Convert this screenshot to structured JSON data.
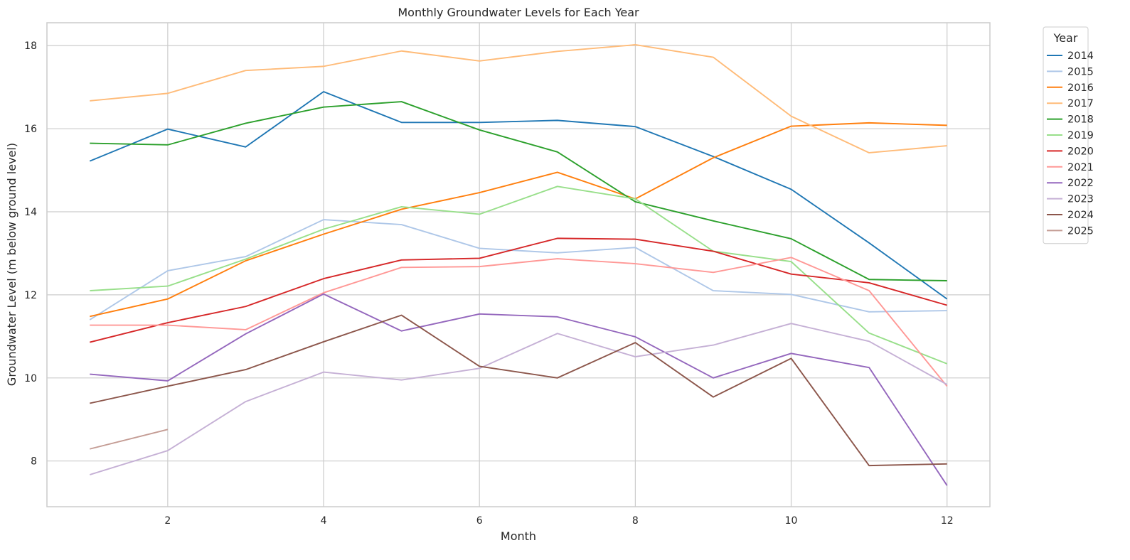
{
  "chart_data": {
    "type": "line",
    "title": "Monthly Groundwater Levels for Each Year",
    "xlabel": "Month",
    "ylabel": "Groundwater Level (m below ground level)",
    "xlim": [
      0.45,
      12.55
    ],
    "ylim": [
      6.9,
      18.55
    ],
    "xticks": [
      2,
      4,
      6,
      8,
      10,
      12
    ],
    "yticks": [
      8,
      10,
      12,
      14,
      16,
      18
    ],
    "grid": true,
    "legend": {
      "title": "Year",
      "placement": "outside-top-right"
    },
    "x": [
      1,
      2,
      3,
      4,
      5,
      6,
      7,
      8,
      9,
      10,
      11,
      12
    ],
    "series": [
      {
        "name": "2014",
        "color": "#1f77b4",
        "values": [
          15.22,
          15.99,
          15.56,
          16.89,
          16.15,
          16.15,
          16.2,
          16.05,
          15.33,
          14.54,
          13.25,
          11.9
        ]
      },
      {
        "name": "2015",
        "color": "#aec7e8",
        "values": [
          11.4,
          12.58,
          12.92,
          13.81,
          13.69,
          13.12,
          13.01,
          13.14,
          12.1,
          12.01,
          11.59,
          11.62
        ]
      },
      {
        "name": "2016",
        "color": "#ff7f0e",
        "values": [
          11.48,
          11.9,
          12.82,
          13.46,
          14.06,
          14.46,
          14.95,
          14.31,
          15.3,
          16.06,
          16.14,
          16.08
        ]
      },
      {
        "name": "2017",
        "color": "#ffbb78",
        "values": [
          16.67,
          16.85,
          17.4,
          17.5,
          17.87,
          17.63,
          17.86,
          18.02,
          17.72,
          16.3,
          15.42,
          15.59
        ]
      },
      {
        "name": "2018",
        "color": "#2ca02c",
        "values": [
          15.65,
          15.61,
          16.13,
          16.52,
          16.65,
          15.97,
          15.44,
          14.24,
          13.78,
          13.35,
          12.37,
          12.34
        ]
      },
      {
        "name": "2019",
        "color": "#98df8a",
        "values": [
          12.1,
          12.21,
          12.86,
          13.58,
          14.12,
          13.94,
          14.61,
          14.31,
          13.05,
          12.8,
          11.08,
          10.34
        ]
      },
      {
        "name": "2020",
        "color": "#d62728",
        "values": [
          10.86,
          11.33,
          11.72,
          12.39,
          12.84,
          12.88,
          13.36,
          13.34,
          13.05,
          12.5,
          12.29,
          11.75
        ]
      },
      {
        "name": "2021",
        "color": "#ff9896",
        "values": [
          11.27,
          11.27,
          11.16,
          12.05,
          12.66,
          12.68,
          12.87,
          12.75,
          12.54,
          12.9,
          12.1,
          9.8
        ]
      },
      {
        "name": "2022",
        "color": "#9467bd",
        "values": [
          10.09,
          9.93,
          11.06,
          12.02,
          11.13,
          11.54,
          11.47,
          10.99,
          10.0,
          10.59,
          10.25,
          7.41
        ]
      },
      {
        "name": "2023",
        "color": "#c5b0d5",
        "values": [
          7.67,
          8.25,
          9.43,
          10.14,
          9.95,
          10.23,
          11.07,
          10.51,
          10.79,
          11.31,
          10.88,
          9.84
        ]
      },
      {
        "name": "2024",
        "color": "#8c564b",
        "values": [
          9.39,
          9.8,
          10.2,
          10.87,
          11.51,
          10.28,
          10.0,
          10.85,
          9.54,
          10.47,
          7.89,
          7.93
        ]
      },
      {
        "name": "2025",
        "color": "#c49c94",
        "values": [
          8.29,
          8.76,
          null,
          null,
          null,
          null,
          null,
          null,
          null,
          null,
          null,
          null
        ]
      }
    ]
  }
}
